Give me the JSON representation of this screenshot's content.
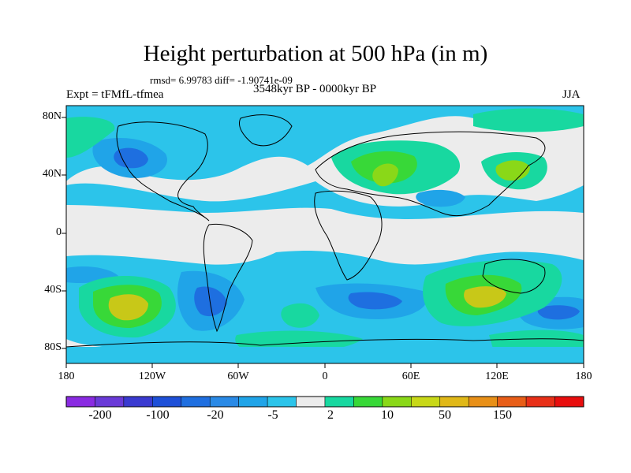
{
  "title": "Height perturbation at 500 hPa (in m)",
  "stats": "rmsd= 6.99783 diff= -1.90741e-09",
  "experiment": "Expt = tFMfL-tfmea",
  "period": "3548kyr BP - 0000kyr BP",
  "season": "JJA",
  "lat_ticks": [
    "80N",
    "40N",
    "0",
    "40S",
    "80S"
  ],
  "lon_ticks": [
    "180",
    "120W",
    "60W",
    "0",
    "60E",
    "120E",
    "180"
  ],
  "colorbar": {
    "labels": [
      "-200",
      "-100",
      "-20",
      "-5",
      "2",
      "10",
      "50",
      "150"
    ],
    "colors": [
      "#8a2be2",
      "#6a3ad8",
      "#3a3ad0",
      "#1e50d8",
      "#1f6fe0",
      "#2a8ae6",
      "#20a4e8",
      "#2cc4ea",
      "#ececec",
      "#18d8a0",
      "#38d838",
      "#8ad818",
      "#c8d818",
      "#e0b818",
      "#e89018",
      "#e85e18",
      "#e83018",
      "#e80e0e"
    ]
  },
  "map_colors": {
    "background": "#ececec",
    "neg_light": "#2cc4ea",
    "neg_mid": "#20a4e8",
    "neg_strong": "#1e6fe0",
    "neg_stronger": "#1a4fd0",
    "pos_light": "#18d8a0",
    "pos_mid": "#38d838",
    "pos_strong": "#8ad818",
    "pos_stronger": "#c8c818"
  }
}
